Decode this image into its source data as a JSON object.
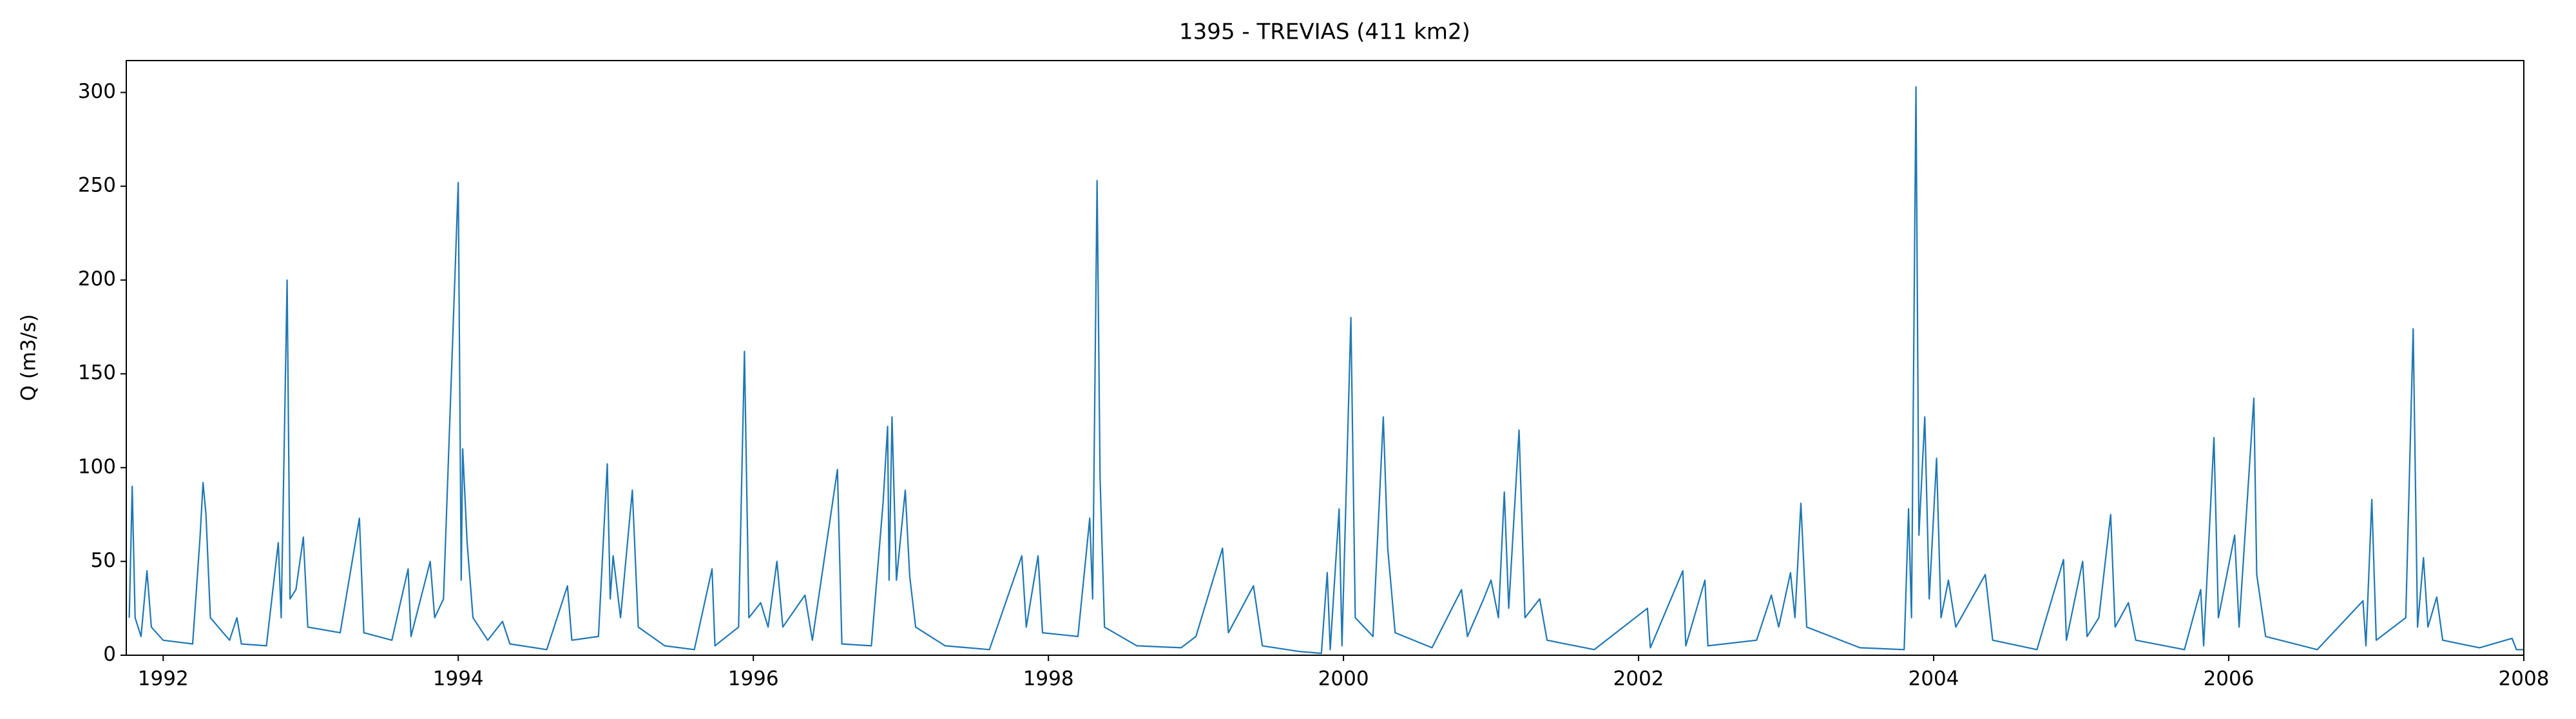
{
  "chart_data": {
    "type": "line",
    "title": "1395 - TREVIAS (411 km2)",
    "ylabel": "Q (m3/s)",
    "color": "#1f77b4",
    "grid": false,
    "xlim": [
      1991.75,
      2008
    ],
    "xticks": [
      1992,
      1994,
      1996,
      1998,
      2000,
      2002,
      2004,
      2006,
      2008
    ],
    "ylim": [
      0,
      317
    ],
    "yticks": [
      0,
      50,
      100,
      150,
      200,
      250,
      300
    ],
    "x": [
      1991.77,
      1991.79,
      1991.81,
      1991.85,
      1991.89,
      1991.92,
      1992.0,
      1992.2,
      1992.25,
      1992.27,
      1992.29,
      1992.32,
      1992.45,
      1992.5,
      1992.53,
      1992.7,
      1992.78,
      1992.8,
      1992.84,
      1992.86,
      1992.9,
      1992.95,
      1992.98,
      1993.2,
      1993.33,
      1993.36,
      1993.55,
      1993.66,
      1993.68,
      1993.81,
      1993.84,
      1993.9,
      1994.0,
      1994.02,
      1994.03,
      1994.06,
      1994.1,
      1994.2,
      1994.3,
      1994.35,
      1994.6,
      1994.74,
      1994.77,
      1994.95,
      1995.01,
      1995.03,
      1995.05,
      1995.1,
      1995.18,
      1995.22,
      1995.4,
      1995.6,
      1995.72,
      1995.74,
      1995.9,
      1995.94,
      1995.97,
      1996.05,
      1996.1,
      1996.16,
      1996.2,
      1996.35,
      1996.4,
      1996.57,
      1996.6,
      1996.8,
      1996.88,
      1996.91,
      1996.92,
      1996.94,
      1996.97,
      1997.03,
      1997.06,
      1997.1,
      1997.3,
      1997.6,
      1997.82,
      1997.85,
      1997.93,
      1997.96,
      1998.2,
      1998.28,
      1998.3,
      1998.33,
      1998.35,
      1998.38,
      1998.6,
      1998.9,
      1999.0,
      1999.18,
      1999.22,
      1999.39,
      1999.45,
      1999.7,
      1999.85,
      1999.89,
      1999.91,
      1999.97,
      1999.99,
      2000.05,
      2000.08,
      2000.2,
      2000.27,
      2000.3,
      2000.35,
      2000.6,
      2000.8,
      2000.84,
      2000.95,
      2001.0,
      2001.05,
      2001.09,
      2001.12,
      2001.19,
      2001.23,
      2001.33,
      2001.38,
      2001.7,
      2002.06,
      2002.08,
      2002.3,
      2002.32,
      2002.45,
      2002.47,
      2002.8,
      2002.9,
      2002.95,
      2003.03,
      2003.06,
      2003.1,
      2003.14,
      2003.5,
      2003.8,
      2003.83,
      2003.85,
      2003.88,
      2003.9,
      2003.94,
      2003.97,
      2004.02,
      2004.05,
      2004.1,
      2004.15,
      2004.35,
      2004.4,
      2004.7,
      2004.88,
      2004.9,
      2005.01,
      2005.04,
      2005.12,
      2005.2,
      2005.23,
      2005.32,
      2005.37,
      2005.7,
      2005.81,
      2005.83,
      2005.9,
      2005.93,
      2006.04,
      2006.07,
      2006.17,
      2006.19,
      2006.25,
      2006.6,
      2006.91,
      2006.93,
      2006.97,
      2007.0,
      2007.2,
      2007.25,
      2007.28,
      2007.32,
      2007.35,
      2007.41,
      2007.45,
      2007.7,
      2007.92,
      2007.95,
      2008.0
    ],
    "values": [
      20,
      90,
      20,
      10,
      45,
      15,
      8,
      6,
      63,
      92,
      75,
      20,
      8,
      20,
      6,
      5,
      60,
      20,
      200,
      30,
      35,
      63,
      15,
      12,
      73,
      12,
      8,
      46,
      10,
      50,
      20,
      30,
      252,
      40,
      110,
      60,
      20,
      8,
      18,
      6,
      3,
      37,
      8,
      10,
      102,
      30,
      53,
      20,
      88,
      15,
      5,
      3,
      46,
      5,
      15,
      162,
      20,
      28,
      15,
      50,
      15,
      32,
      8,
      99,
      6,
      5,
      82,
      122,
      40,
      127,
      40,
      88,
      42,
      15,
      5,
      3,
      53,
      15,
      53,
      12,
      10,
      73,
      30,
      253,
      95,
      15,
      5,
      4,
      10,
      57,
      12,
      37,
      5,
      2,
      1,
      44,
      3,
      78,
      5,
      180,
      20,
      10,
      127,
      57,
      12,
      4,
      35,
      10,
      30,
      40,
      20,
      87,
      25,
      120,
      20,
      30,
      8,
      3,
      25,
      4,
      45,
      5,
      40,
      5,
      8,
      32,
      15,
      44,
      20,
      81,
      15,
      4,
      3,
      78,
      20,
      303,
      64,
      127,
      30,
      105,
      20,
      40,
      15,
      43,
      8,
      3,
      51,
      8,
      50,
      10,
      20,
      75,
      15,
      28,
      8,
      3,
      35,
      5,
      116,
      20,
      64,
      15,
      137,
      43,
      10,
      3,
      29,
      5,
      83,
      8,
      20,
      174,
      15,
      52,
      15,
      31,
      8,
      4,
      9,
      3,
      3
    ]
  }
}
